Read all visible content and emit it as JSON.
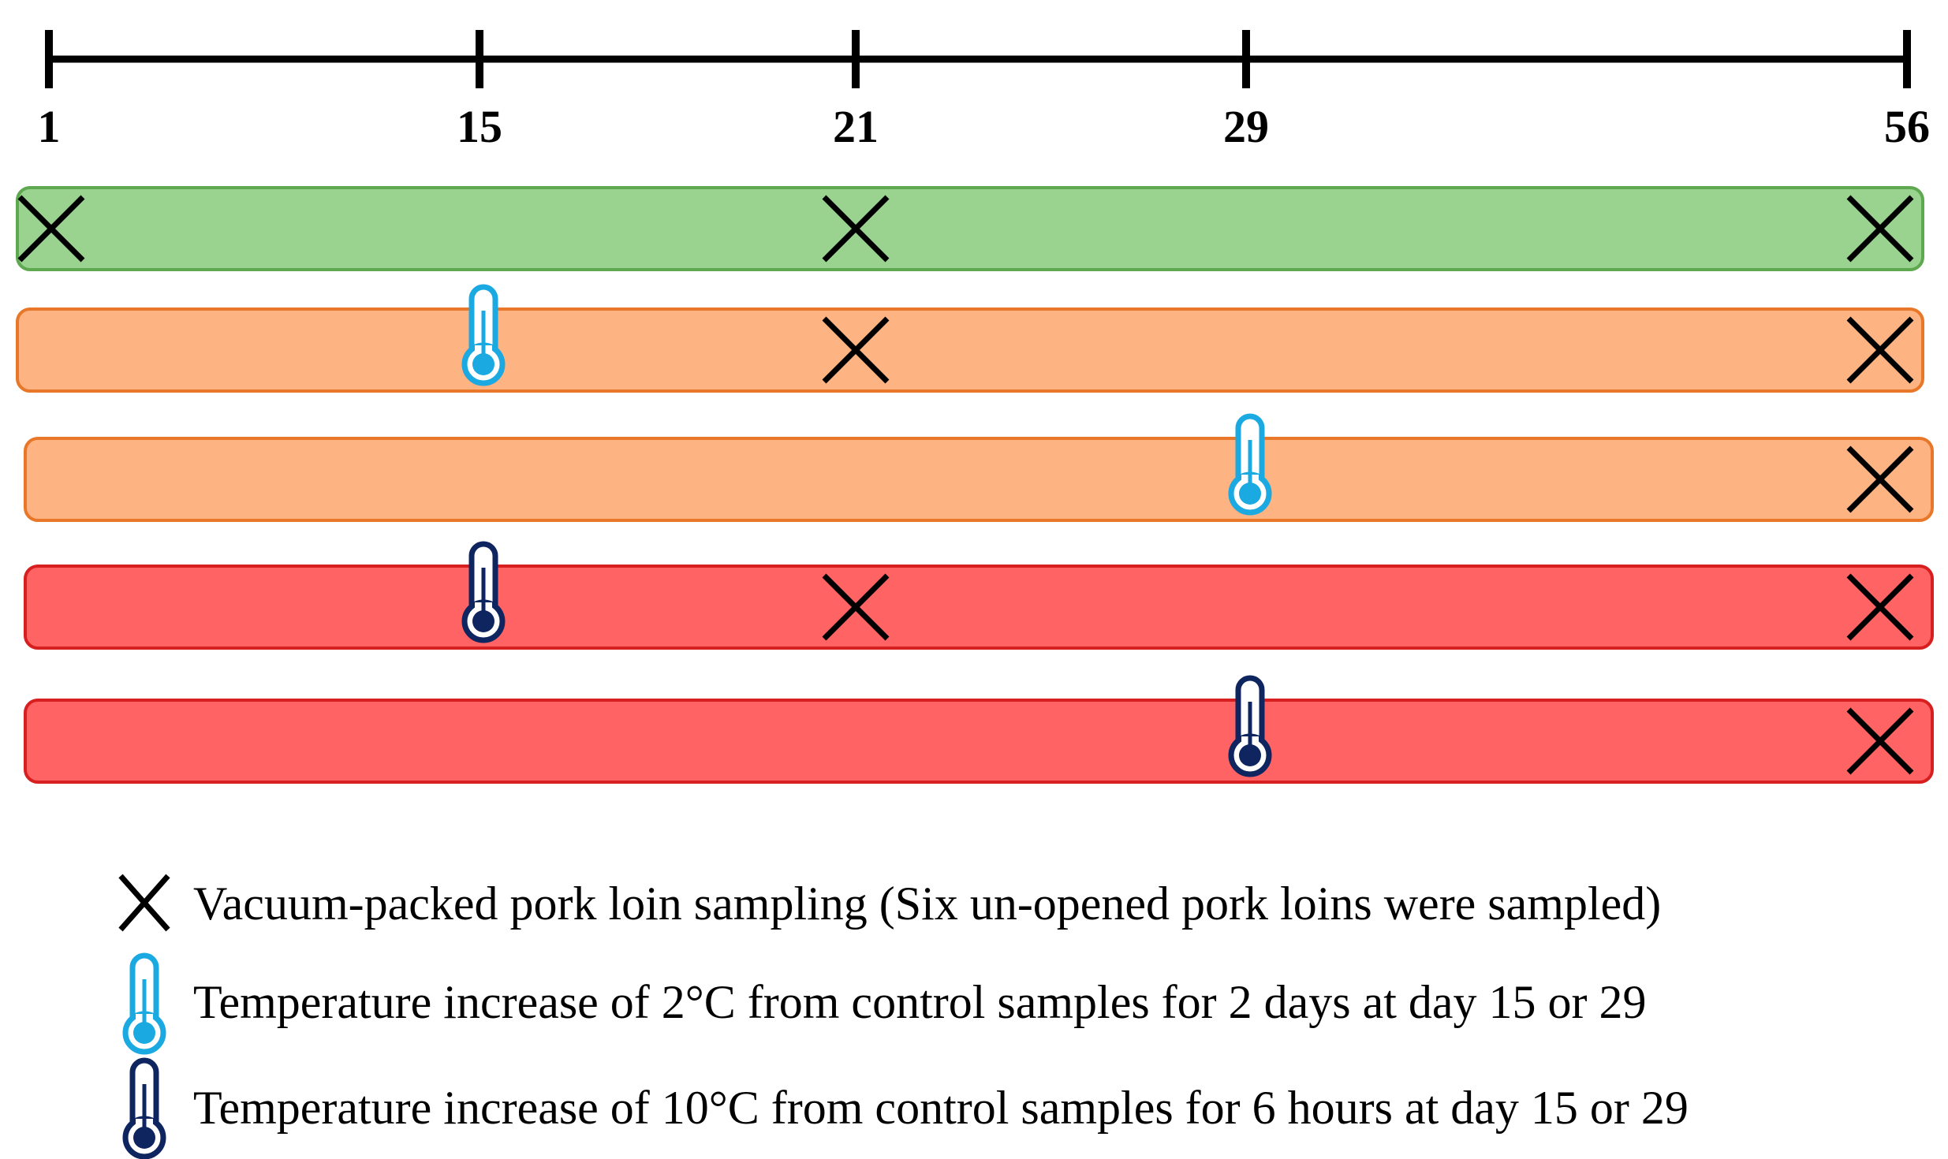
{
  "timeline": {
    "ticks": [
      {
        "day": 1,
        "label": "1"
      },
      {
        "day": 15,
        "label": "15"
      },
      {
        "day": 21,
        "label": "21"
      },
      {
        "day": 29,
        "label": "29"
      },
      {
        "day": 56,
        "label": "56"
      }
    ]
  },
  "rows": [
    {
      "name": "control",
      "color": "#99d38f",
      "border": "#5ea84f",
      "events": [
        {
          "day": 1,
          "type": "sample"
        },
        {
          "day": 21,
          "type": "sample"
        },
        {
          "day": 56,
          "type": "sample"
        }
      ]
    },
    {
      "name": "plus-2c-day15",
      "color": "#fdb382",
      "border": "#e8772a",
      "events": [
        {
          "day": 15,
          "type": "temp-2c"
        },
        {
          "day": 21,
          "type": "sample"
        },
        {
          "day": 56,
          "type": "sample"
        }
      ]
    },
    {
      "name": "plus-2c-day29",
      "color": "#fdb382",
      "border": "#e8772a",
      "events": [
        {
          "day": 29,
          "type": "temp-2c"
        },
        {
          "day": 56,
          "type": "sample"
        }
      ]
    },
    {
      "name": "plus-10c-day15",
      "color": "#ff6363",
      "border": "#d81f1f",
      "events": [
        {
          "day": 15,
          "type": "temp-10c"
        },
        {
          "day": 21,
          "type": "sample"
        },
        {
          "day": 56,
          "type": "sample"
        }
      ]
    },
    {
      "name": "plus-10c-day29",
      "color": "#ff6363",
      "border": "#d81f1f",
      "events": [
        {
          "day": 29,
          "type": "temp-10c"
        },
        {
          "day": 56,
          "type": "sample"
        }
      ]
    }
  ],
  "icon_colors": {
    "temp_2c": "#1ba9e1",
    "temp_10c": "#0f2560",
    "sample": "#000000"
  },
  "legend": {
    "sample_text": "Vacuum-packed pork loin sampling (Six un-opened pork loins were sampled)",
    "temp_2c_text": "Temperature increase of 2°C from control samples for 2 days at day 15 or 29",
    "temp_10c_text": "Temperature increase of 10°C from control samples for 6 hours at day 15 or 29"
  }
}
